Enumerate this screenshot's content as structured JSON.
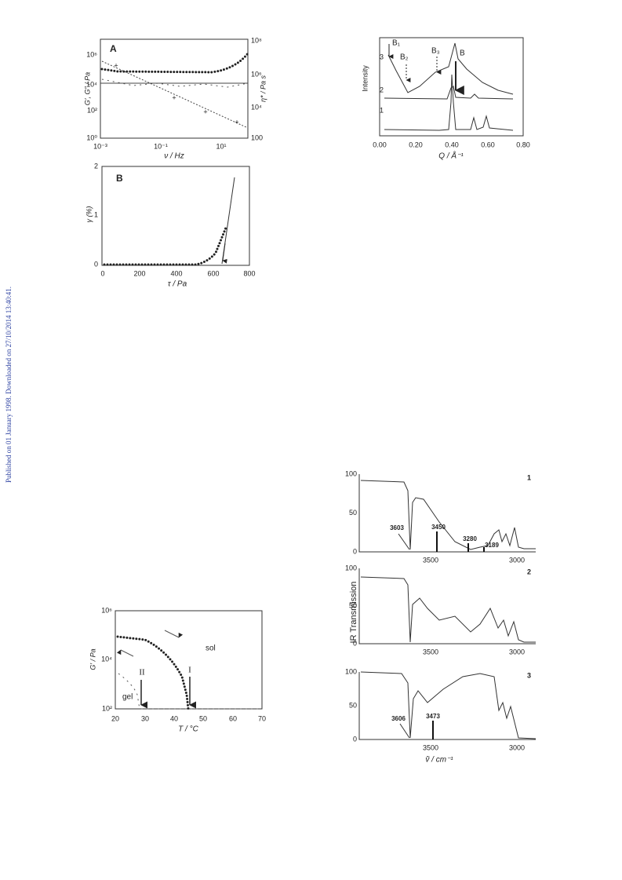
{
  "sidebar": "Published on 01 January 1998. Downloaded on 27/10/2014 13:40:41.",
  "fig_rheology": {
    "panel_a": {
      "label": "A",
      "y_label": "G′, G″ / Pa",
      "y2_label": "η* / Pa s",
      "x_label": "ν / Hz",
      "yticks": [
        "10⁰",
        "10²",
        "10⁴",
        "10⁶"
      ],
      "y2ticks": [
        "100",
        "10⁴",
        "10⁶",
        "10⁸"
      ],
      "xticks": [
        "10⁻³",
        "10⁻¹",
        "10¹"
      ]
    },
    "panel_b": {
      "label": "B",
      "y_label": "γ (%)",
      "x_label": "τ / Pa",
      "yticks": [
        "0",
        "1",
        "2"
      ],
      "xticks": [
        "0",
        "200",
        "400",
        "600",
        "800"
      ]
    }
  },
  "fig_xray": {
    "y_label": "Intensity",
    "x_label": "Q / Å⁻¹",
    "xticks": [
      "0.00",
      "0.20",
      "0.40",
      "0.60",
      "0.80"
    ],
    "curve_labels": [
      "3",
      "2",
      "1"
    ],
    "peaks": [
      "B₁",
      "B₂",
      "B₃",
      "B"
    ]
  },
  "fig_modulus": {
    "y_label": "G′ / Pa",
    "x_label": "T / °C",
    "yticks": [
      "10²",
      "10⁴",
      "10⁶"
    ],
    "xticks": [
      "20",
      "30",
      "40",
      "50",
      "60",
      "70"
    ],
    "annotations": [
      "sol",
      "gel",
      "II",
      "I"
    ]
  },
  "fig_ir": {
    "y_label": "IR Transmission",
    "x_label": "ṽ / cm⁻¹",
    "panels": [
      {
        "number": "1",
        "yticks": [
          "0",
          "50",
          "100"
        ],
        "xticks": [
          "3500",
          "3000"
        ],
        "peaks": [
          "3603",
          "3450",
          "3280",
          "3189"
        ]
      },
      {
        "number": "2",
        "yticks": [
          "0",
          "50",
          "100"
        ],
        "xticks": [
          "3500",
          "3000"
        ],
        "peaks": []
      },
      {
        "number": "3",
        "yticks": [
          "0",
          "50",
          "100"
        ],
        "xticks": [
          "3500",
          "3000"
        ],
        "peaks": [
          "3606",
          "3473"
        ]
      }
    ]
  }
}
